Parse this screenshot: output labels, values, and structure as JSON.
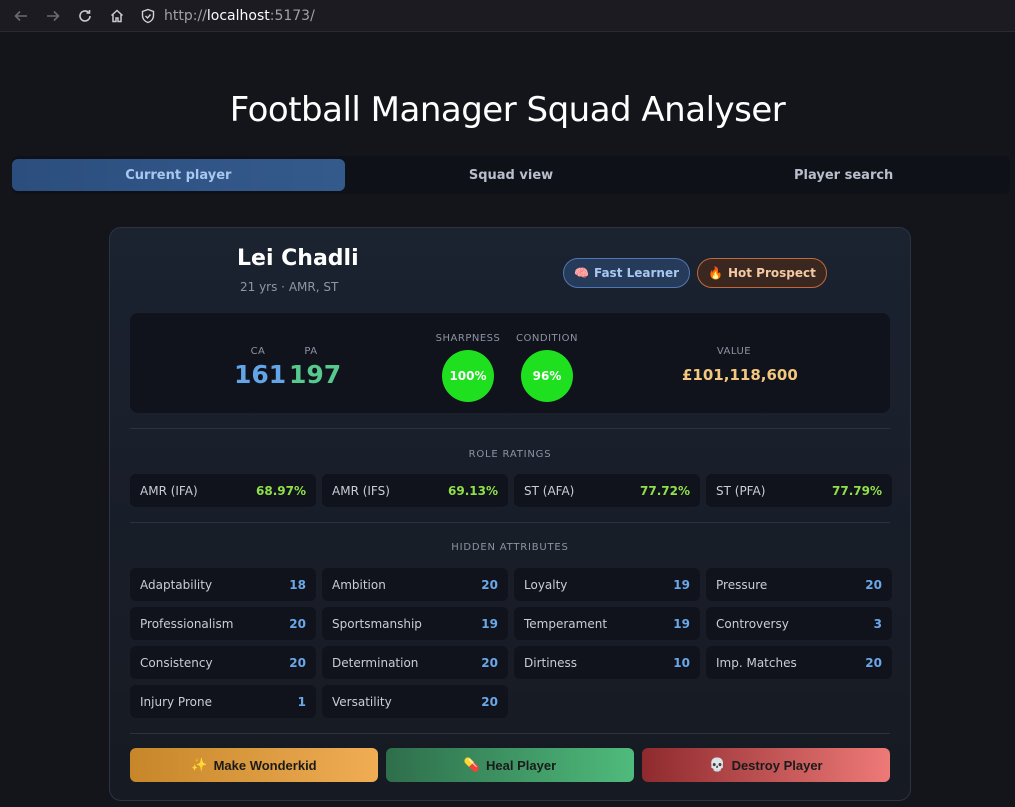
{
  "browser": {
    "url_proto": "http://",
    "url_host": "localhost",
    "url_rest": ":5173/"
  },
  "app": {
    "title": "Football Manager Squad Analyser"
  },
  "tabs": [
    {
      "label": "Current player",
      "active": true
    },
    {
      "label": "Squad view",
      "active": false
    },
    {
      "label": "Player search",
      "active": false
    }
  ],
  "player": {
    "name": "Lei Chadli",
    "meta": "21 yrs · AMR, ST",
    "badges": [
      {
        "emoji": "🧠",
        "label": "Fast Learner"
      },
      {
        "emoji": "🔥",
        "label": "Hot Prospect"
      }
    ],
    "stats": {
      "ca_label": "CA",
      "ca": "161",
      "pa_label": "PA",
      "pa": "197",
      "sharpness_label": "SHARPNESS",
      "sharpness": "100%",
      "condition_label": "CONDITION",
      "condition": "96%",
      "value_label": "VALUE",
      "value": "£101,118,600"
    }
  },
  "role_ratings": {
    "title": "ROLE RATINGS",
    "items": [
      {
        "role": "AMR (IFA)",
        "rating": "68.97%"
      },
      {
        "role": "AMR (IFS)",
        "rating": "69.13%"
      },
      {
        "role": "ST (AFA)",
        "rating": "77.72%"
      },
      {
        "role": "ST (PFA)",
        "rating": "77.79%"
      }
    ]
  },
  "hidden_attributes": {
    "title": "HIDDEN ATTRIBUTES",
    "items": [
      {
        "name": "Adaptability",
        "value": "18"
      },
      {
        "name": "Ambition",
        "value": "20"
      },
      {
        "name": "Loyalty",
        "value": "19"
      },
      {
        "name": "Pressure",
        "value": "20"
      },
      {
        "name": "Professionalism",
        "value": "20"
      },
      {
        "name": "Sportsmanship",
        "value": "19"
      },
      {
        "name": "Temperament",
        "value": "19"
      },
      {
        "name": "Controversy",
        "value": "3"
      },
      {
        "name": "Consistency",
        "value": "20"
      },
      {
        "name": "Determination",
        "value": "20"
      },
      {
        "name": "Dirtiness",
        "value": "10"
      },
      {
        "name": "Imp. Matches",
        "value": "20"
      },
      {
        "name": "Injury Prone",
        "value": "1"
      },
      {
        "name": "Versatility",
        "value": "20"
      }
    ]
  },
  "actions": [
    {
      "emoji": "✨",
      "label": "Make Wonderkid"
    },
    {
      "emoji": "💊",
      "label": "Heal Player"
    },
    {
      "emoji": "💀",
      "label": "Destroy Player"
    }
  ]
}
